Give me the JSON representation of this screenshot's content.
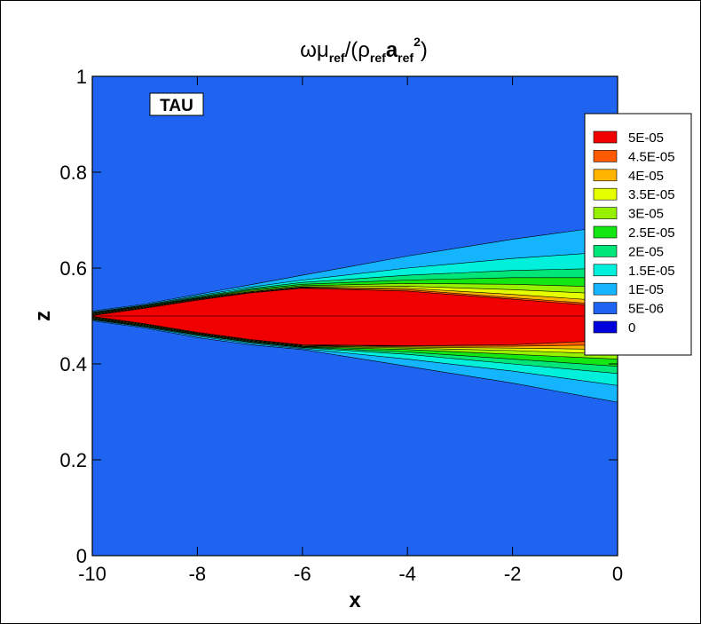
{
  "chart_data": {
    "type": "contour",
    "title": [
      "ωμ",
      "ref",
      "/(ρ",
      "ref",
      "a",
      "ref",
      "2",
      ")"
    ],
    "xlabel": "x",
    "ylabel": "z",
    "annotation": "TAU",
    "xlim": [
      -10,
      0
    ],
    "xticks": [
      -10,
      -8,
      -6,
      -4,
      -2,
      0
    ],
    "ylim": [
      0,
      1
    ],
    "yticks": [
      0,
      0.2,
      0.4,
      0.6,
      0.8,
      1
    ],
    "legend": {
      "values": [
        5e-05,
        4.5e-05,
        4e-05,
        3.5e-05,
        3e-05,
        2.5e-05,
        2e-05,
        1.5e-05,
        1e-05,
        5e-06,
        0
      ],
      "value_labels": [
        "5E-05",
        "4.5E-05",
        "4E-05",
        "3.5E-05",
        "3E-05",
        "2.5E-05",
        "2E-05",
        "1.5E-05",
        "1E-05",
        "5E-06",
        "0"
      ],
      "colors": [
        "#f00000",
        "#ff5a00",
        "#ffb400",
        "#e6ff00",
        "#96f000",
        "#14e614",
        "#00e678",
        "#00f0dc",
        "#14b4ff",
        "#1e64f0",
        "#0000dc"
      ]
    }
  }
}
